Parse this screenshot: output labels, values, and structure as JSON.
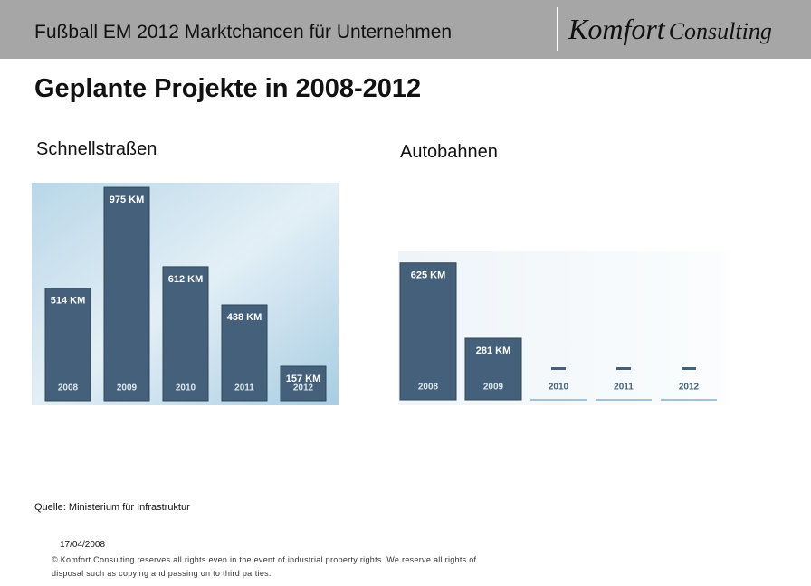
{
  "header": {
    "title": "Fußball EM 2012 Marktchancen für Unternehmen",
    "logo_1": "Komfort",
    "logo_2": "Consulting"
  },
  "heading": "Geplante Projekte in 2008-2012",
  "chart_data": [
    {
      "type": "bar",
      "title": "Schnellstraßen",
      "categories": [
        "2008",
        "2009",
        "2010",
        "2011",
        "2012"
      ],
      "values": [
        514,
        975,
        612,
        438,
        157
      ],
      "value_labels": [
        "514 KM",
        "975 KM",
        "612 KM",
        "438 KM",
        "157 KM"
      ],
      "color": "#44607a"
    },
    {
      "type": "bar",
      "title": "Autobahnen",
      "categories": [
        "2008",
        "2009",
        "2010",
        "2011",
        "2012"
      ],
      "values": [
        625,
        281,
        null,
        null,
        null
      ],
      "value_labels": [
        "625 KM",
        "281 KM",
        null,
        null,
        null
      ],
      "color": "#44607a"
    }
  ],
  "source": "Quelle: Ministerium für Infrastruktur",
  "footer": {
    "date": "17/04/2008",
    "copyright": [
      "© Komfort Consulting reserves all rights even in the event of industrial property rights. We reserve all rights of",
      "disposal such as copying and passing on to third parties."
    ]
  }
}
